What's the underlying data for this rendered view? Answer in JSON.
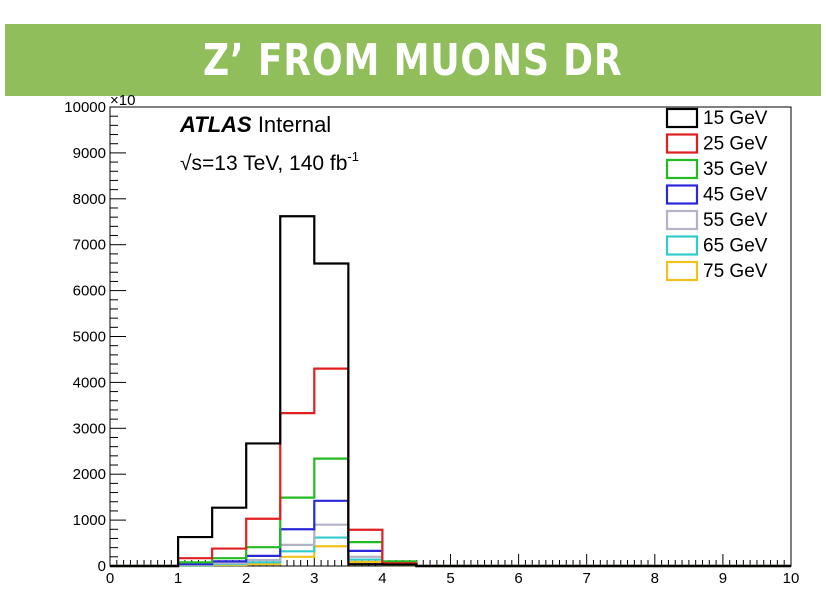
{
  "page": {
    "title": "Z’ FROM MUONS DR",
    "banner_color": "#8fbe5a"
  },
  "chart_data": {
    "type": "histogram",
    "xlim": [
      0,
      10
    ],
    "ylim": [
      0,
      10000
    ],
    "xticks": [
      "0",
      "1",
      "2",
      "3",
      "4",
      "5",
      "6",
      "7",
      "8",
      "9",
      "10"
    ],
    "yticks": [
      "0",
      "1000",
      "2000",
      "3000",
      "4000",
      "5000",
      "6000",
      "7000",
      "8000",
      "9000",
      "10000"
    ],
    "y_multiplier": "×10",
    "atlas_label": "ATLAS",
    "atlas_suffix": "Internal",
    "energy_text": "√s=13 TeV, 140 fb",
    "energy_superscript": "-1",
    "bin_edges": [
      0,
      0.5,
      1.0,
      1.5,
      2.0,
      2.5,
      3.0,
      3.5,
      4.0,
      4.5,
      5.0,
      5.5,
      6.0,
      6.5,
      7.0,
      7.5,
      8.0,
      8.5,
      9.0,
      9.5,
      10.0
    ],
    "series": [
      {
        "name": "15 GeV",
        "color": "#000000",
        "values": [
          0,
          0,
          630,
          1270,
          2670,
          7620,
          6590,
          40,
          30,
          0,
          0,
          0,
          0,
          0,
          0,
          0,
          0,
          0,
          0,
          0
        ]
      },
      {
        "name": "25 GeV",
        "color": "#e02020",
        "values": [
          0,
          0,
          170,
          380,
          1030,
          3330,
          4300,
          790,
          60,
          0,
          0,
          0,
          0,
          0,
          0,
          0,
          0,
          0,
          0,
          0
        ]
      },
      {
        "name": "35 GeV",
        "color": "#22bb22",
        "values": [
          0,
          0,
          80,
          170,
          410,
          1490,
          2340,
          520,
          100,
          0,
          0,
          0,
          0,
          0,
          0,
          0,
          0,
          0,
          0,
          0
        ]
      },
      {
        "name": "45 GeV",
        "color": "#2a28d8",
        "values": [
          0,
          0,
          40,
          100,
          220,
          800,
          1420,
          330,
          70,
          0,
          0,
          0,
          0,
          0,
          0,
          0,
          0,
          0,
          0,
          0
        ]
      },
      {
        "name": "55 GeV",
        "color": "#b3b3c6",
        "values": [
          0,
          0,
          20,
          60,
          130,
          460,
          900,
          200,
          50,
          0,
          0,
          0,
          0,
          0,
          0,
          0,
          0,
          0,
          0,
          0
        ]
      },
      {
        "name": "65 GeV",
        "color": "#33cccc",
        "values": [
          0,
          0,
          10,
          40,
          80,
          320,
          620,
          140,
          30,
          0,
          0,
          0,
          0,
          0,
          0,
          0,
          0,
          0,
          0,
          0
        ]
      },
      {
        "name": "75 GeV",
        "color": "#f3c21a",
        "values": [
          0,
          0,
          5,
          20,
          40,
          200,
          430,
          90,
          20,
          0,
          0,
          0,
          0,
          0,
          0,
          0,
          0,
          0,
          0,
          0
        ]
      }
    ],
    "legend_position": "top-right",
    "grid": false
  }
}
